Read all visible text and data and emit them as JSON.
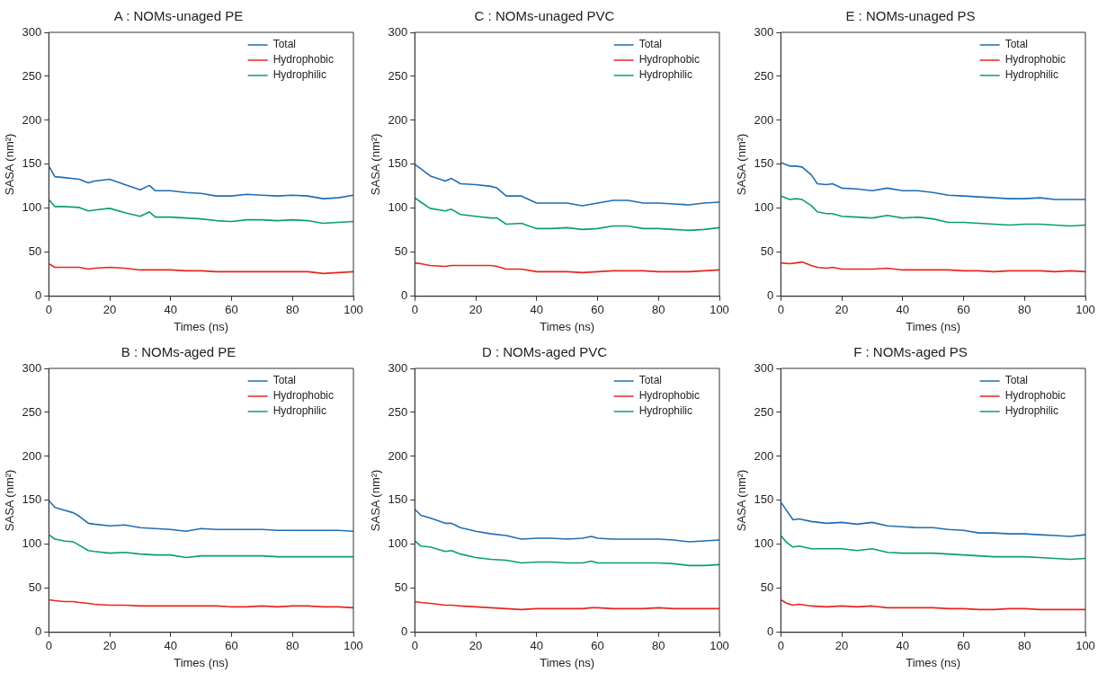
{
  "chart_data": [
    {
      "type": "line",
      "title": "A : NOMs-unaged PE",
      "xlabel": "Times (ns)",
      "ylabel": "SASA (nm²)",
      "xlim": [
        0,
        100
      ],
      "xticks": [
        0,
        20,
        40,
        60,
        80,
        100
      ],
      "ylim": [
        0,
        300
      ],
      "yticks": [
        0,
        50,
        100,
        150,
        200,
        250,
        300
      ],
      "grid": false,
      "legend": "top right",
      "marker": "none",
      "line_style": "solid",
      "x": [
        0,
        2,
        5,
        10,
        13,
        15,
        20,
        25,
        30,
        33,
        35,
        40,
        45,
        50,
        55,
        60,
        65,
        70,
        75,
        80,
        85,
        90,
        95,
        100
      ],
      "series": [
        {
          "name": "Total",
          "color": "#1f6db5",
          "values": [
            148,
            136,
            135,
            133,
            129,
            131,
            133,
            127,
            121,
            126,
            120,
            120,
            118,
            117,
            114,
            114,
            116,
            115,
            114,
            115,
            114,
            111,
            112,
            115
          ]
        },
        {
          "name": "Hydrophobic",
          "color": "#e8251f",
          "values": [
            37,
            33,
            33,
            33,
            31,
            32,
            33,
            32,
            30,
            30,
            30,
            30,
            29,
            29,
            28,
            28,
            28,
            28,
            28,
            28,
            28,
            26,
            27,
            28
          ]
        },
        {
          "name": "Hydrophilic",
          "color": "#0a9e6e",
          "values": [
            110,
            102,
            102,
            101,
            97,
            98,
            100,
            95,
            91,
            96,
            90,
            90,
            89,
            88,
            86,
            85,
            87,
            87,
            86,
            87,
            86,
            83,
            84,
            85
          ]
        }
      ]
    },
    {
      "type": "line",
      "title": "C : NOMs-unaged PVC",
      "xlabel": "Times (ns)",
      "ylabel": "SASA (nm²)",
      "xlim": [
        0,
        100
      ],
      "xticks": [
        0,
        20,
        40,
        60,
        80,
        100
      ],
      "ylim": [
        0,
        300
      ],
      "yticks": [
        0,
        50,
        100,
        150,
        200,
        250,
        300
      ],
      "grid": false,
      "legend": "top right",
      "marker": "none",
      "line_style": "solid",
      "x": [
        0,
        2,
        5,
        10,
        12,
        15,
        20,
        25,
        27,
        30,
        35,
        40,
        45,
        50,
        55,
        60,
        65,
        70,
        75,
        80,
        85,
        90,
        95,
        100
      ],
      "series": [
        {
          "name": "Total",
          "color": "#1f6db5",
          "values": [
            150,
            145,
            137,
            131,
            134,
            128,
            127,
            125,
            123,
            114,
            114,
            106,
            106,
            106,
            103,
            106,
            109,
            109,
            106,
            106,
            105,
            104,
            106,
            107
          ]
        },
        {
          "name": "Hydrophobic",
          "color": "#e8251f",
          "values": [
            38,
            37,
            35,
            34,
            35,
            35,
            35,
            35,
            34,
            31,
            31,
            28,
            28,
            28,
            27,
            28,
            29,
            29,
            29,
            28,
            28,
            28,
            29,
            30
          ]
        },
        {
          "name": "Hydrophilic",
          "color": "#0a9e6e",
          "values": [
            112,
            107,
            100,
            97,
            99,
            93,
            91,
            89,
            89,
            82,
            83,
            77,
            77,
            78,
            76,
            77,
            80,
            80,
            77,
            77,
            76,
            75,
            76,
            78
          ]
        }
      ]
    },
    {
      "type": "line",
      "title": "E : NOMs-unaged PS",
      "xlabel": "Times (ns)",
      "ylabel": "SASA (nm²)",
      "xlim": [
        0,
        100
      ],
      "xticks": [
        0,
        20,
        40,
        60,
        80,
        100
      ],
      "ylim": [
        0,
        300
      ],
      "yticks": [
        0,
        50,
        100,
        150,
        200,
        250,
        300
      ],
      "grid": false,
      "legend": "top right",
      "marker": "none",
      "line_style": "solid",
      "x": [
        0,
        3,
        5,
        7,
        10,
        12,
        15,
        17,
        20,
        25,
        30,
        35,
        40,
        45,
        50,
        55,
        60,
        65,
        70,
        75,
        80,
        85,
        90,
        95,
        100
      ],
      "series": [
        {
          "name": "Total",
          "color": "#1f6db5",
          "values": [
            152,
            148,
            148,
            147,
            138,
            128,
            127,
            128,
            123,
            122,
            120,
            123,
            120,
            120,
            118,
            115,
            114,
            113,
            112,
            111,
            111,
            112,
            110,
            110,
            110
          ]
        },
        {
          "name": "Hydrophobic",
          "color": "#e8251f",
          "values": [
            38,
            37,
            38,
            39,
            35,
            33,
            32,
            33,
            31,
            31,
            31,
            32,
            30,
            30,
            30,
            30,
            29,
            29,
            28,
            29,
            29,
            29,
            28,
            29,
            28
          ]
        },
        {
          "name": "Hydrophilic",
          "color": "#0a9e6e",
          "values": [
            114,
            110,
            111,
            110,
            103,
            96,
            94,
            94,
            91,
            90,
            89,
            92,
            89,
            90,
            88,
            84,
            84,
            83,
            82,
            81,
            82,
            82,
            81,
            80,
            81
          ]
        }
      ]
    },
    {
      "type": "line",
      "title": "B : NOMs-aged PE",
      "xlabel": "Times (ns)",
      "ylabel": "SASA (nm²)",
      "xlim": [
        0,
        100
      ],
      "xticks": [
        0,
        20,
        40,
        60,
        80,
        100
      ],
      "ylim": [
        0,
        300
      ],
      "yticks": [
        0,
        50,
        100,
        150,
        200,
        250,
        300
      ],
      "grid": false,
      "legend": "top right",
      "marker": "none",
      "line_style": "solid",
      "x": [
        0,
        2,
        5,
        8,
        10,
        13,
        15,
        20,
        25,
        30,
        35,
        40,
        45,
        50,
        55,
        60,
        65,
        70,
        75,
        80,
        85,
        90,
        95,
        100
      ],
      "series": [
        {
          "name": "Total",
          "color": "#1f6db5",
          "values": [
            150,
            142,
            139,
            136,
            132,
            124,
            123,
            121,
            122,
            119,
            118,
            117,
            115,
            118,
            117,
            117,
            117,
            117,
            116,
            116,
            116,
            116,
            116,
            115
          ]
        },
        {
          "name": "Hydrophobic",
          "color": "#e8251f",
          "values": [
            37,
            36,
            35,
            35,
            34,
            33,
            32,
            31,
            31,
            30,
            30,
            30,
            30,
            30,
            30,
            29,
            29,
            30,
            29,
            30,
            30,
            29,
            29,
            28
          ]
        },
        {
          "name": "Hydrophilic",
          "color": "#0a9e6e",
          "values": [
            111,
            106,
            104,
            103,
            99,
            93,
            92,
            90,
            91,
            89,
            88,
            88,
            85,
            87,
            87,
            87,
            87,
            87,
            86,
            86,
            86,
            86,
            86,
            86
          ]
        }
      ]
    },
    {
      "type": "line",
      "title": "D : NOMs-aged PVC",
      "xlabel": "Times (ns)",
      "ylabel": "SASA (nm²)",
      "xlim": [
        0,
        100
      ],
      "xticks": [
        0,
        20,
        40,
        60,
        80,
        100
      ],
      "ylim": [
        0,
        300
      ],
      "yticks": [
        0,
        50,
        100,
        150,
        200,
        250,
        300
      ],
      "grid": false,
      "legend": "top right",
      "marker": "none",
      "line_style": "solid",
      "x": [
        0,
        2,
        5,
        10,
        12,
        15,
        20,
        25,
        30,
        35,
        40,
        45,
        50,
        55,
        58,
        60,
        65,
        70,
        75,
        80,
        85,
        90,
        95,
        100
      ],
      "series": [
        {
          "name": "Total",
          "color": "#1f6db5",
          "values": [
            140,
            133,
            130,
            124,
            124,
            119,
            115,
            112,
            110,
            106,
            107,
            107,
            106,
            107,
            109,
            107,
            106,
            106,
            106,
            106,
            105,
            103,
            104,
            105
          ]
        },
        {
          "name": "Hydrophobic",
          "color": "#e8251f",
          "values": [
            35,
            34,
            33,
            31,
            31,
            30,
            29,
            28,
            27,
            26,
            27,
            27,
            27,
            27,
            28,
            28,
            27,
            27,
            27,
            28,
            27,
            27,
            27,
            27
          ]
        },
        {
          "name": "Hydrophilic",
          "color": "#0a9e6e",
          "values": [
            104,
            98,
            97,
            92,
            93,
            89,
            85,
            83,
            82,
            79,
            80,
            80,
            79,
            79,
            81,
            79,
            79,
            79,
            79,
            79,
            78,
            76,
            76,
            77
          ]
        }
      ]
    },
    {
      "type": "line",
      "title": "F : NOMs-aged PS",
      "xlabel": "Times (ns)",
      "ylabel": "SASA (nm²)",
      "xlim": [
        0,
        100
      ],
      "xticks": [
        0,
        20,
        40,
        60,
        80,
        100
      ],
      "ylim": [
        0,
        300
      ],
      "yticks": [
        0,
        50,
        100,
        150,
        200,
        250,
        300
      ],
      "grid": false,
      "legend": "top right",
      "marker": "none",
      "line_style": "solid",
      "x": [
        0,
        2,
        4,
        6,
        10,
        15,
        20,
        25,
        30,
        35,
        40,
        45,
        50,
        55,
        60,
        65,
        70,
        75,
        80,
        85,
        90,
        95,
        100
      ],
      "series": [
        {
          "name": "Total",
          "color": "#1f6db5",
          "values": [
            148,
            138,
            128,
            129,
            126,
            124,
            125,
            123,
            125,
            121,
            120,
            119,
            119,
            117,
            116,
            113,
            113,
            112,
            112,
            111,
            110,
            109,
            111
          ]
        },
        {
          "name": "Hydrophobic",
          "color": "#e8251f",
          "values": [
            37,
            33,
            31,
            32,
            30,
            29,
            30,
            29,
            30,
            28,
            28,
            28,
            28,
            27,
            27,
            26,
            26,
            27,
            27,
            26,
            26,
            26,
            26
          ]
        },
        {
          "name": "Hydrophilic",
          "color": "#0a9e6e",
          "values": [
            110,
            102,
            97,
            98,
            95,
            95,
            95,
            93,
            95,
            91,
            90,
            90,
            90,
            89,
            88,
            87,
            86,
            86,
            86,
            85,
            84,
            83,
            84
          ]
        }
      ]
    }
  ]
}
